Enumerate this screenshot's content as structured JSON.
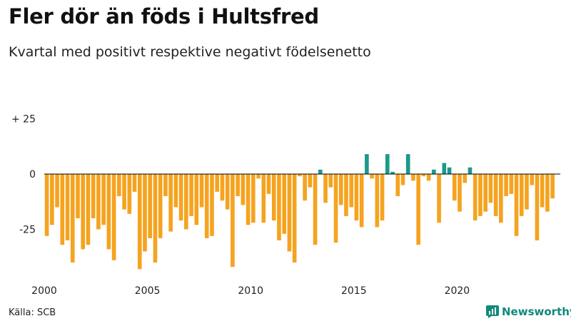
{
  "header": {
    "title": "Fler dör än föds i Hultsfred",
    "subtitle": "Kvartal med positivt respektive negativt födelsenetto"
  },
  "footer": {
    "source": "Källa: SCB",
    "brand": "Newsworthy"
  },
  "colors": {
    "positive": "#1a9a8b",
    "negative": "#f5a31f",
    "axis_text": "#222222",
    "zero_line": "#000000"
  },
  "chart_data": {
    "type": "bar",
    "title": "Fler dör än föds i Hultsfred",
    "subtitle": "Kvartal med positivt respektive negativt födelsenetto",
    "xlabel": "",
    "ylabel": "",
    "ylim": [
      -47,
      30
    ],
    "y_ticks": [
      {
        "value": 25,
        "label": "+ 25"
      },
      {
        "value": 0,
        "label": "0"
      },
      {
        "value": -25,
        "label": "-25"
      }
    ],
    "x_range": [
      2000,
      2025
    ],
    "x_ticks": [
      {
        "value": 2000,
        "label": "2000"
      },
      {
        "value": 2005,
        "label": "2005"
      },
      {
        "value": 2010,
        "label": "2010"
      },
      {
        "value": 2015,
        "label": "2015"
      },
      {
        "value": 2020,
        "label": "2020"
      }
    ],
    "start_year": 2000,
    "period": "quarter",
    "values": [
      -28,
      -23,
      -15,
      -32,
      -30,
      -40,
      -20,
      -34,
      -32,
      -20,
      -25,
      -23,
      -34,
      -39,
      -10,
      -16,
      -18,
      -8,
      -43,
      -35,
      -29,
      -40,
      -29,
      -10,
      -26,
      -15,
      -21,
      -25,
      -19,
      -23,
      -15,
      -29,
      -28,
      -8,
      -12,
      -16,
      -42,
      -10,
      -14,
      -23,
      -22,
      -2,
      -22,
      -9,
      -21,
      -30,
      -27,
      -35,
      -40,
      -1,
      -12,
      -6,
      -32,
      2,
      -13,
      -6,
      -31,
      -14,
      -19,
      -15,
      -21,
      -24,
      9,
      -2,
      -24,
      -21,
      9,
      1,
      -10,
      -5,
      9,
      -3,
      -32,
      -1,
      -3,
      2,
      -22,
      5,
      3,
      -12,
      -17,
      -4,
      3,
      -21,
      -19,
      -17,
      -13,
      -19,
      -22,
      -10,
      -9,
      -28,
      -19,
      -16,
      -5,
      -30,
      -15,
      -17,
      -11
    ]
  }
}
